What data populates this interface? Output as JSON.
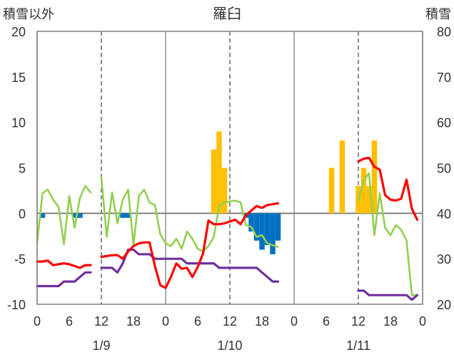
{
  "chart_data": {
    "type": "line",
    "title": "羅臼",
    "left_axis_title": "積雪以外",
    "right_axis_title": "積雪",
    "left_axis": {
      "ylim": [
        -10,
        20
      ],
      "ticks": [
        -10,
        -5,
        0,
        5,
        10,
        15,
        20
      ]
    },
    "right_axis": {
      "ylim": [
        20,
        80
      ],
      "ticks": [
        20,
        30,
        40,
        50,
        60,
        70,
        80
      ]
    },
    "x_hours_domain": [
      0,
      72
    ],
    "x_tick_labels": [
      "0",
      "6",
      "12",
      "18",
      "0",
      "6",
      "12",
      "18",
      "0",
      "6",
      "12",
      "18",
      "0"
    ],
    "date_labels": [
      "1/9",
      "1/10",
      "1/11"
    ],
    "day_separators_hours": [
      0,
      24,
      48,
      72
    ],
    "grid": "dashed vertical lines at 12:00 of each day",
    "colors": {
      "temperature": "#ff0000",
      "dew_point": "#7030a0",
      "wind_speed": "#92d050",
      "precipitation": "#ffc000",
      "snow_depth_change": "#0070c0",
      "zero_line": "#7f7f7f"
    },
    "series": [
      {
        "segments": [
          [
            [
              0,
              -5.3
            ],
            [
              1,
              -5.3
            ],
            [
              2,
              -5.2
            ],
            [
              3,
              -5.7
            ],
            [
              4,
              -5.6
            ],
            [
              5,
              -5.5
            ],
            [
              6,
              -5.6
            ],
            [
              7,
              -5.8
            ],
            [
              8,
              -6
            ],
            [
              9,
              -5.7
            ],
            [
              10,
              -5.7
            ]
          ],
          [
            [
              12,
              -4.8
            ],
            [
              13,
              -4.7
            ],
            [
              14,
              -4.6
            ],
            [
              15,
              -4.6
            ],
            [
              16,
              -5
            ],
            [
              17,
              -4.2
            ],
            [
              18,
              -3.6
            ],
            [
              19,
              -3.3
            ],
            [
              20,
              -3.2
            ],
            [
              21,
              -3.2
            ],
            [
              22,
              -5.8
            ],
            [
              23,
              -7.9
            ],
            [
              24,
              -8.2
            ],
            [
              25,
              -7
            ],
            [
              26,
              -5.5
            ],
            [
              27,
              -6.1
            ],
            [
              28,
              -6
            ],
            [
              29,
              -7
            ],
            [
              30,
              -5.9
            ],
            [
              31,
              -4.4
            ],
            [
              32,
              -0.8
            ],
            [
              33,
              -1.2
            ],
            [
              34,
              -1.2
            ],
            [
              35,
              -1.1
            ],
            [
              36,
              -0.9
            ],
            [
              37,
              -0.7
            ],
            [
              38,
              -1.2
            ],
            [
              39,
              -0.2
            ],
            [
              40,
              0.3
            ],
            [
              41,
              0.8
            ],
            [
              42,
              0.6
            ],
            [
              43,
              0.9
            ],
            [
              44,
              1
            ],
            [
              45,
              1.1
            ]
          ],
          [
            [
              60,
              5.7
            ],
            [
              61,
              6
            ],
            [
              62,
              6.1
            ],
            [
              63,
              5.1
            ],
            [
              64,
              4.8
            ],
            [
              65,
              2
            ],
            [
              66,
              1.5
            ],
            [
              67,
              1.4
            ],
            [
              68,
              1.6
            ],
            [
              69,
              3.7
            ],
            [
              70,
              0.5
            ],
            [
              71,
              -0.7
            ]
          ]
        ]
      },
      {
        "segments": [
          [
            [
              0,
              -8
            ],
            [
              1,
              -8
            ],
            [
              2,
              -8
            ],
            [
              3,
              -8
            ],
            [
              4,
              -8
            ],
            [
              5,
              -7.5
            ],
            [
              6,
              -7.5
            ],
            [
              7,
              -7.5
            ],
            [
              8,
              -7
            ],
            [
              9,
              -6.5
            ],
            [
              10,
              -6.5
            ]
          ],
          [
            [
              12,
              -6
            ],
            [
              13,
              -6
            ],
            [
              14,
              -6
            ],
            [
              15,
              -6.5
            ],
            [
              16,
              -5.5
            ],
            [
              17,
              -4
            ],
            [
              18,
              -4
            ],
            [
              19,
              -4.5
            ],
            [
              20,
              -4.5
            ],
            [
              21,
              -4.5
            ],
            [
              22,
              -5
            ],
            [
              23,
              -5
            ],
            [
              24,
              -5
            ],
            [
              25,
              -5
            ],
            [
              26,
              -5
            ],
            [
              27,
              -5
            ],
            [
              28,
              -5.5
            ],
            [
              29,
              -5.5
            ],
            [
              30,
              -5.5
            ],
            [
              31,
              -5.5
            ],
            [
              32,
              -5.5
            ],
            [
              33,
              -5.5
            ],
            [
              34,
              -6
            ],
            [
              35,
              -6
            ],
            [
              36,
              -6
            ],
            [
              37,
              -6
            ],
            [
              38,
              -6
            ],
            [
              39,
              -6
            ],
            [
              40,
              -6
            ],
            [
              41,
              -6
            ],
            [
              42,
              -6.5
            ],
            [
              43,
              -7
            ],
            [
              44,
              -7.5
            ],
            [
              45,
              -7.5
            ]
          ],
          [
            [
              60,
              -8.5
            ],
            [
              61,
              -8.5
            ],
            [
              62,
              -9
            ],
            [
              63,
              -9
            ],
            [
              64,
              -9
            ],
            [
              65,
              -9
            ],
            [
              66,
              -9
            ],
            [
              67,
              -9
            ],
            [
              68,
              -9
            ],
            [
              69,
              -9
            ],
            [
              70,
              -9.5
            ],
            [
              71,
              -9
            ]
          ]
        ]
      },
      {
        "segments": [
          [
            [
              0,
              -3.2
            ],
            [
              1,
              2.2
            ],
            [
              2,
              2.6
            ],
            [
              3,
              1.5
            ],
            [
              4,
              0.7
            ],
            [
              5,
              -3.4
            ],
            [
              6,
              1.9
            ],
            [
              7,
              -1.6
            ],
            [
              8,
              1.7
            ],
            [
              9,
              3
            ],
            [
              10,
              2.3
            ]
          ],
          [
            [
              12,
              3.9
            ],
            [
              13,
              -2.6
            ],
            [
              14,
              2.3
            ],
            [
              15,
              -1.1
            ],
            [
              16,
              1.5
            ],
            [
              17,
              2.6
            ],
            [
              18,
              -3.5
            ],
            [
              19,
              1.9
            ],
            [
              20,
              2.6
            ],
            [
              21,
              1.2
            ],
            [
              22,
              0.9
            ],
            [
              23,
              -2.3
            ],
            [
              24,
              -3.3
            ],
            [
              25,
              -3.6
            ],
            [
              26,
              -2.8
            ],
            [
              27,
              -3.9
            ],
            [
              28,
              -2
            ],
            [
              29,
              -2.8
            ],
            [
              30,
              -3.9
            ],
            [
              31,
              -4.2
            ],
            [
              32,
              -3.6
            ],
            [
              33,
              -2.6
            ],
            [
              34,
              0.8
            ],
            [
              35,
              1.2
            ],
            [
              36,
              1.3
            ],
            [
              37,
              1.4
            ],
            [
              38,
              1.2
            ],
            [
              39,
              -1.3
            ],
            [
              40,
              -1.5
            ],
            [
              41,
              -2.6
            ],
            [
              42,
              -2.4
            ],
            [
              43,
              -3.3
            ],
            [
              44,
              -3.5
            ],
            [
              45,
              -3.7
            ]
          ],
          [
            [
              60,
              1.4
            ],
            [
              61,
              3.6
            ],
            [
              62,
              4.4
            ],
            [
              63,
              -2.4
            ],
            [
              64,
              2.2
            ],
            [
              65,
              -1.6
            ],
            [
              66,
              -2.4
            ],
            [
              67,
              -1.3
            ],
            [
              68,
              -1.8
            ],
            [
              69,
              -3
            ],
            [
              70,
              -9
            ],
            [
              71,
              -9
            ]
          ]
        ]
      }
    ],
    "bar_series": [
      {
        "bars": [
          [
            33,
            7
          ],
          [
            34,
            9
          ],
          [
            35,
            5
          ],
          [
            55,
            5
          ],
          [
            57,
            8
          ],
          [
            60,
            3
          ],
          [
            61,
            5
          ],
          [
            62,
            3
          ],
          [
            63,
            8
          ]
        ]
      },
      {
        "bars": [
          [
            1,
            -0.5
          ],
          [
            7,
            -0.5
          ],
          [
            8,
            -0.5
          ],
          [
            16,
            -0.5
          ],
          [
            17,
            -0.5
          ],
          [
            39,
            -0.5
          ],
          [
            40,
            -2
          ],
          [
            41,
            -3
          ],
          [
            42,
            -4
          ],
          [
            43,
            -3.5
          ],
          [
            44,
            -4.5
          ],
          [
            45,
            -3
          ]
        ]
      }
    ]
  }
}
